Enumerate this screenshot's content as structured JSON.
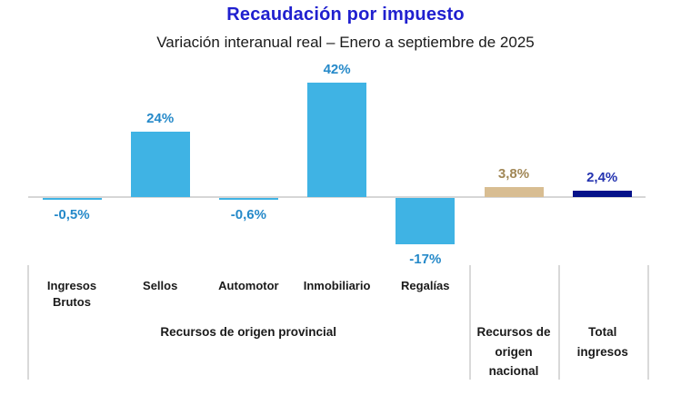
{
  "header": {
    "title": "Recaudación por impuesto",
    "subtitle": "Variación interanual real – Enero a septiembre de 2025"
  },
  "colors": {
    "title": "#2020cf",
    "subtitle": "#1a1a1a",
    "axis": "#d6d6d6",
    "divider": "#d9d9d9"
  },
  "chart_data": {
    "type": "bar",
    "title": "Recaudación por impuesto",
    "subtitle": "Variación interanual real – Enero a septiembre de 2025",
    "unit": "%",
    "ylim": [
      -20,
      46
    ],
    "grid": false,
    "legend": "none",
    "categories": [
      "Ingresos Brutos",
      "Sellos",
      "Automotor",
      "Inmobiliario",
      "Regalías",
      "",
      ""
    ],
    "bars": [
      {
        "category": "Ingresos Brutos",
        "value": -0.5,
        "label": "-0,5%",
        "group": "provincial"
      },
      {
        "category": "Sellos",
        "value": 24,
        "label": "24%",
        "group": "provincial"
      },
      {
        "category": "Automotor",
        "value": -0.6,
        "label": "-0,6%",
        "group": "provincial"
      },
      {
        "category": "Inmobiliario",
        "value": 42,
        "label": "42%",
        "group": "provincial"
      },
      {
        "category": "Regalías",
        "value": -17,
        "label": "-17%",
        "group": "provincial"
      },
      {
        "category": "",
        "value": 3.8,
        "label": "3,8%",
        "group": "nacional"
      },
      {
        "category": "",
        "value": 2.4,
        "label": "2,4%",
        "group": "total"
      }
    ],
    "groups": [
      {
        "id": "provincial",
        "label": "Recursos de origen provincial"
      },
      {
        "id": "nacional",
        "label": "Recursos de origen nacional"
      },
      {
        "id": "total",
        "label": "Total ingresos"
      }
    ],
    "palette": {
      "provincial": {
        "bar": "#3fb3e4",
        "label": "#2589c9"
      },
      "nacional": {
        "bar": "#d8bd92",
        "label": "#a18756"
      },
      "total": {
        "bar": "#05128a",
        "label": "#2433b0"
      }
    }
  }
}
